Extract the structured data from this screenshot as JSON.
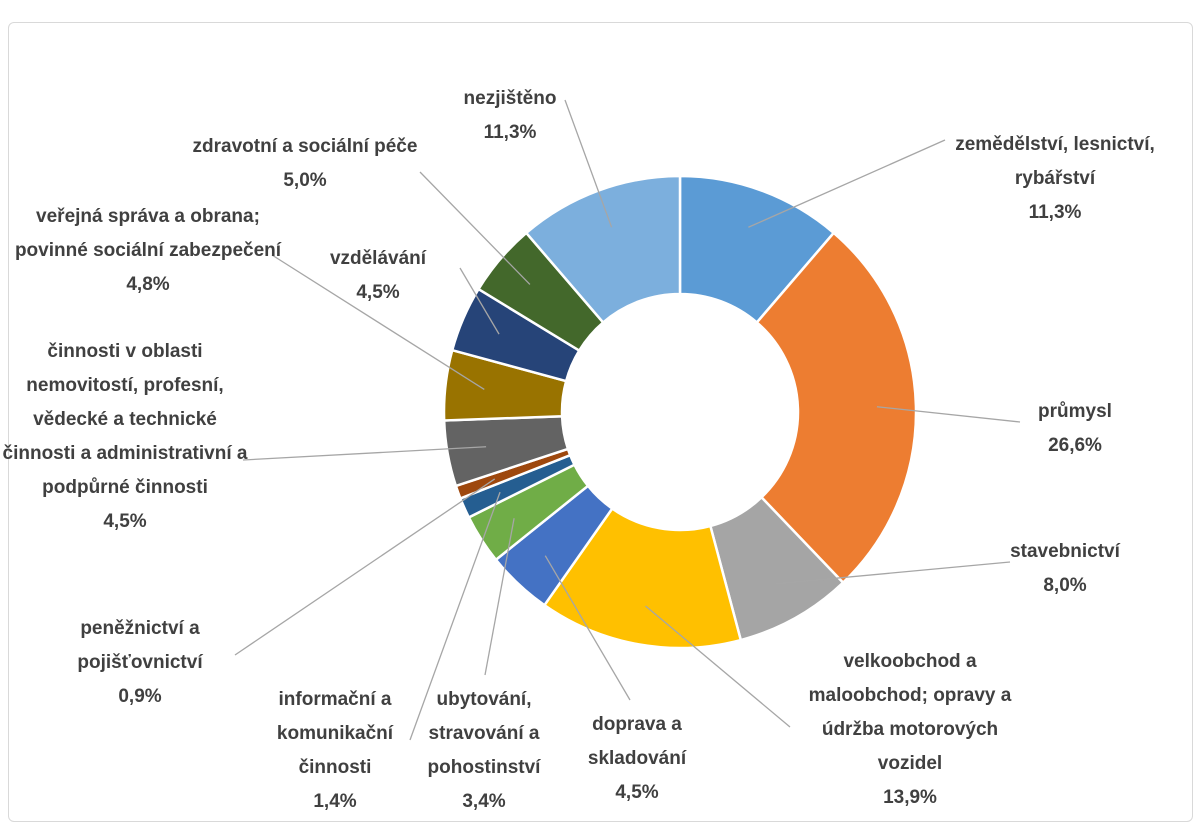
{
  "chart_data": {
    "type": "donut",
    "categories": [
      "zemědělství, lesnictví, rybářství",
      "průmysl",
      "stavebnictví",
      "velkoobchod a maloobchod; opravy a údržba motorových vozidel",
      "doprava a skladování",
      "ubytování, stravování a pohostinství",
      "informační a komunikační činnosti",
      "peněžnictví a pojišťovnictví",
      "činnosti v oblasti nemovitostí, profesní, vědecké a technické činnosti a administrativní a podpůrné činnosti",
      "veřejná správa a obrana; povinné sociální zabezpečení",
      "vzdělávání",
      "zdravotní a sociální péče",
      "nezjištěno"
    ],
    "values": [
      11.3,
      26.6,
      8.0,
      13.9,
      4.5,
      3.4,
      1.4,
      0.9,
      4.5,
      4.8,
      4.5,
      5.0,
      11.3
    ],
    "value_labels": [
      "11,3%",
      "26,6%",
      "8,0%",
      "13,9%",
      "4,5%",
      "3,4%",
      "1,4%",
      "0,9%",
      "4,5%",
      "4,8%",
      "4,5%",
      "5,0%",
      "11,3%"
    ],
    "colors": [
      "#5b9bd5",
      "#ed7d31",
      "#a5a5a5",
      "#ffc000",
      "#4472c4",
      "#70ad47",
      "#255e91",
      "#9e480e",
      "#636363",
      "#997300",
      "#264478",
      "#43682b",
      "#7cafdd"
    ]
  }
}
